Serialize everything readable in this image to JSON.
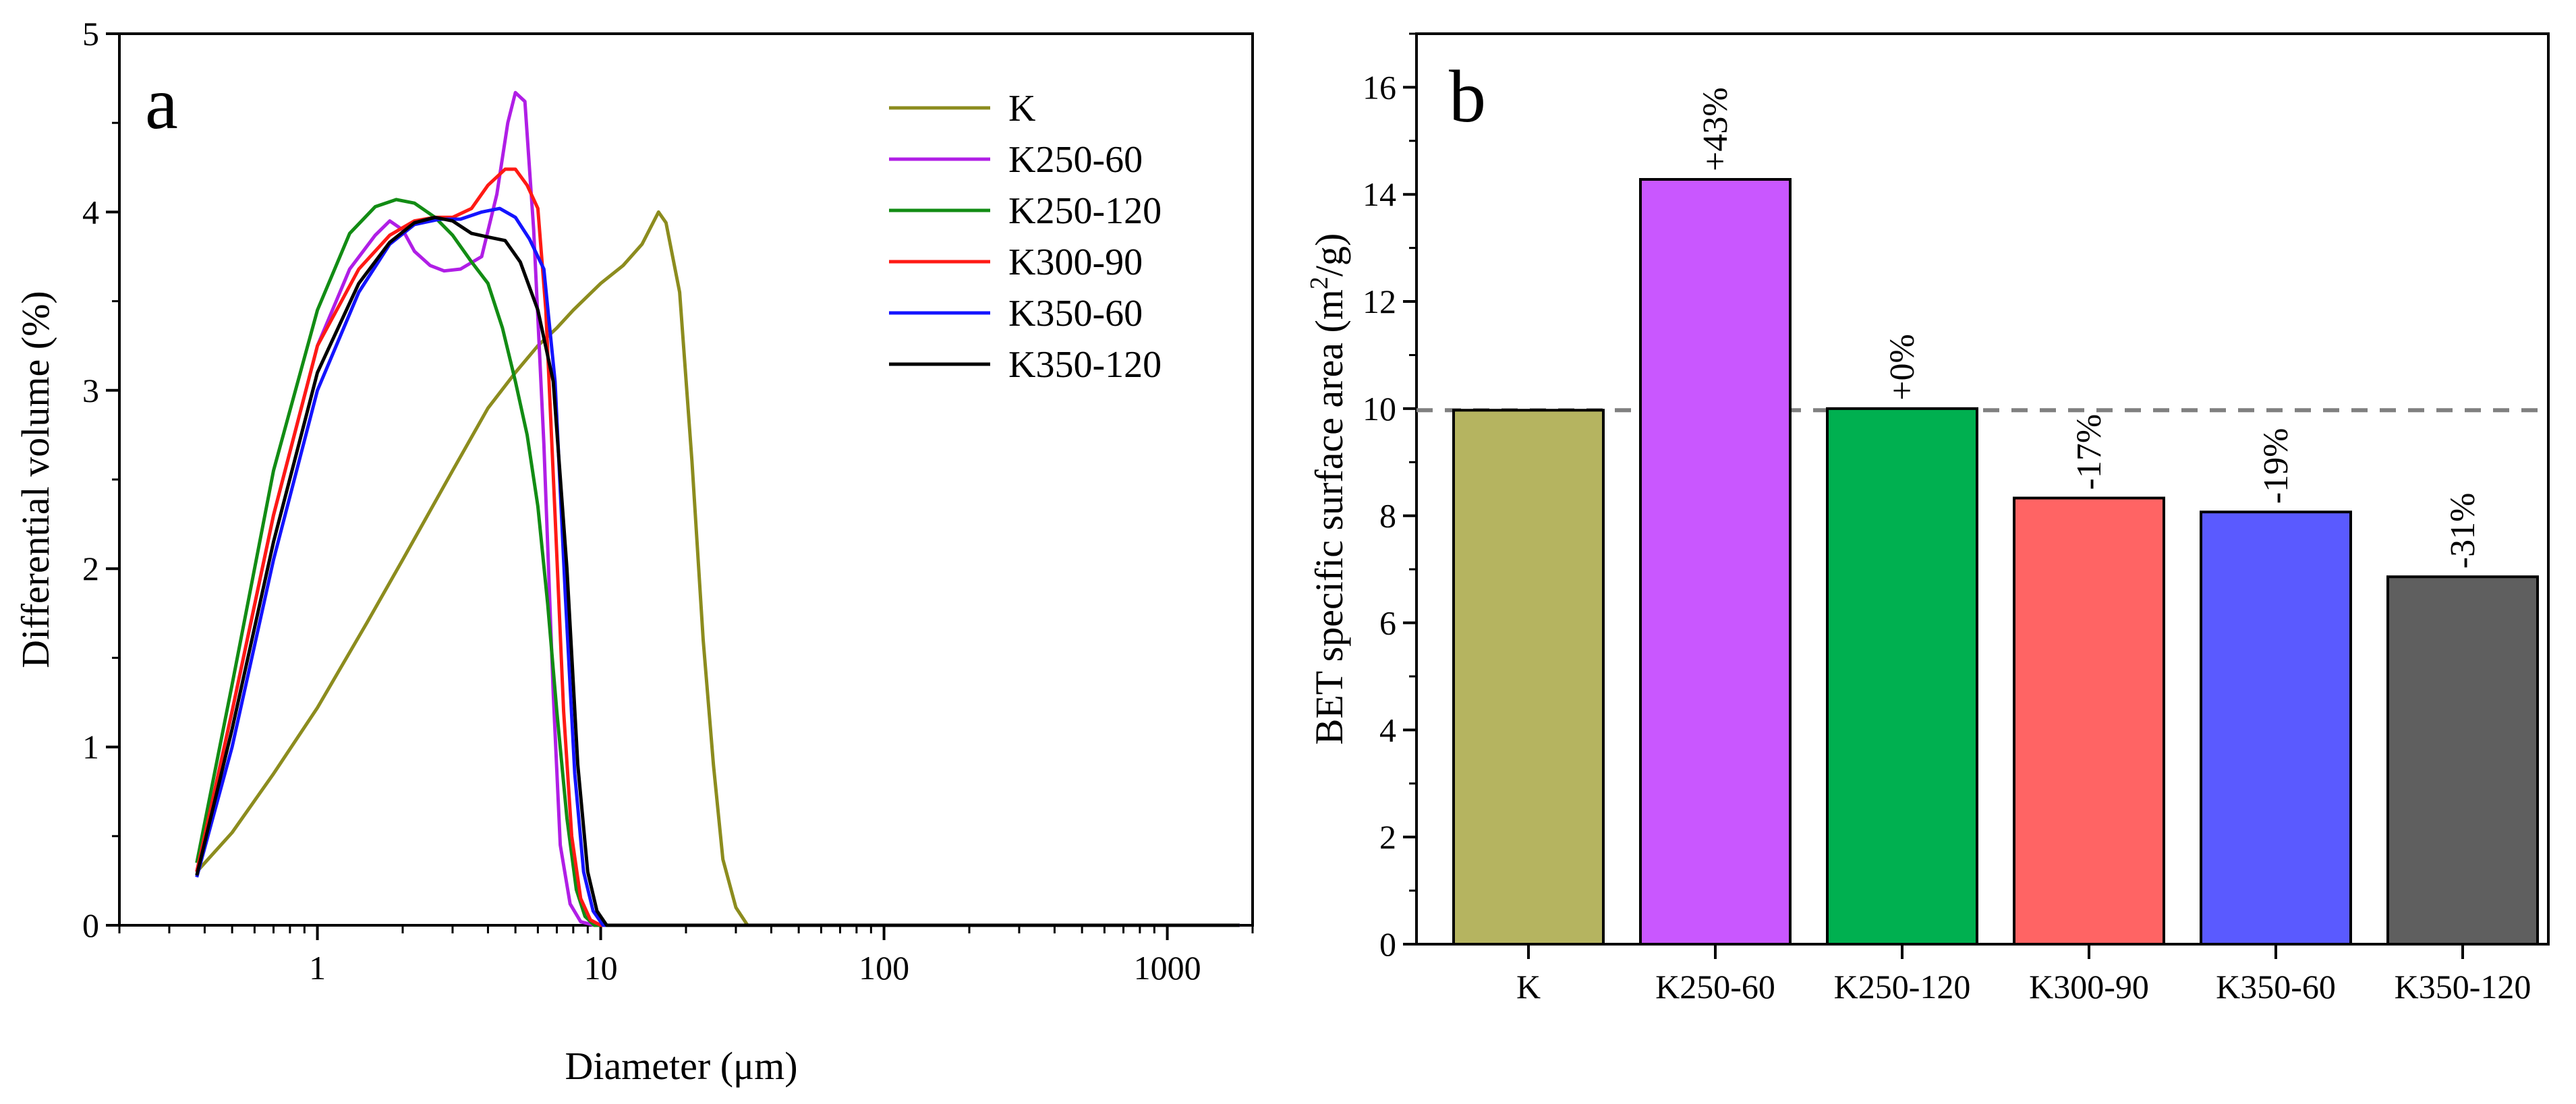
{
  "chart_data": [
    {
      "panel": "a",
      "type": "line",
      "x_scale": "log",
      "xlabel": "Diameter (μm)",
      "ylabel": "Differential volume (%)",
      "xlim": [
        0.2,
        2000
      ],
      "ylim": [
        0,
        5
      ],
      "x_ticks": [
        1,
        10,
        100,
        1000
      ],
      "x_tick_labels": [
        "1",
        "10",
        "100",
        "1000"
      ],
      "y_ticks": [
        0,
        1,
        2,
        3,
        4,
        5
      ],
      "y_tick_labels": [
        "0",
        "1",
        "2",
        "3",
        "4",
        "5"
      ],
      "legend_position": "top-right",
      "series": [
        {
          "name": "K",
          "color": "#8c8c1e",
          "points": [
            [
              0.375,
              0.3
            ],
            [
              0.5,
              0.52
            ],
            [
              0.7,
              0.85
            ],
            [
              1,
              1.22
            ],
            [
              1.5,
              1.7
            ],
            [
              2,
              2.05
            ],
            [
              3,
              2.55
            ],
            [
              4,
              2.9
            ],
            [
              5,
              3.1
            ],
            [
              6,
              3.25
            ],
            [
              7,
              3.35
            ],
            [
              8,
              3.45
            ],
            [
              10,
              3.6
            ],
            [
              12,
              3.7
            ],
            [
              14,
              3.82
            ],
            [
              16,
              4.0
            ],
            [
              17,
              3.94
            ],
            [
              19,
              3.55
            ],
            [
              21,
              2.6
            ],
            [
              23,
              1.6
            ],
            [
              25,
              0.9
            ],
            [
              27,
              0.37
            ],
            [
              30,
              0.1
            ],
            [
              33,
              0.0
            ],
            [
              40,
              0
            ],
            [
              100,
              0
            ],
            [
              1000,
              0
            ],
            [
              1800,
              0
            ]
          ]
        },
        {
          "name": "K250-60",
          "color": "#b01ee6",
          "points": [
            [
              0.375,
              0.3
            ],
            [
              0.5,
              1.2
            ],
            [
              0.7,
              2.3
            ],
            [
              1,
              3.25
            ],
            [
              1.3,
              3.68
            ],
            [
              1.6,
              3.87
            ],
            [
              1.8,
              3.95
            ],
            [
              2,
              3.9
            ],
            [
              2.2,
              3.78
            ],
            [
              2.5,
              3.7
            ],
            [
              2.8,
              3.67
            ],
            [
              3.2,
              3.68
            ],
            [
              3.8,
              3.75
            ],
            [
              4.3,
              4.1
            ],
            [
              4.7,
              4.5
            ],
            [
              5.0,
              4.67
            ],
            [
              5.4,
              4.62
            ],
            [
              5.8,
              3.9
            ],
            [
              6.3,
              2.7
            ],
            [
              6.8,
              1.3
            ],
            [
              7.2,
              0.45
            ],
            [
              7.8,
              0.12
            ],
            [
              8.5,
              0.02
            ],
            [
              9.5,
              0
            ],
            [
              100,
              0
            ],
            [
              1800,
              0
            ]
          ]
        },
        {
          "name": "K250-120",
          "color": "#128c14",
          "points": [
            [
              0.375,
              0.35
            ],
            [
              0.5,
              1.35
            ],
            [
              0.7,
              2.55
            ],
            [
              1,
              3.45
            ],
            [
              1.3,
              3.88
            ],
            [
              1.6,
              4.03
            ],
            [
              1.9,
              4.07
            ],
            [
              2.2,
              4.05
            ],
            [
              2.6,
              3.97
            ],
            [
              3,
              3.87
            ],
            [
              3.5,
              3.72
            ],
            [
              4,
              3.6
            ],
            [
              4.5,
              3.35
            ],
            [
              5,
              3.05
            ],
            [
              5.5,
              2.75
            ],
            [
              6,
              2.35
            ],
            [
              6.5,
              1.8
            ],
            [
              7,
              1.2
            ],
            [
              7.6,
              0.6
            ],
            [
              8.2,
              0.2
            ],
            [
              8.8,
              0.05
            ],
            [
              9.5,
              0.0
            ],
            [
              100,
              0
            ],
            [
              1800,
              0
            ]
          ]
        },
        {
          "name": "K300-90",
          "color": "#ff1a14",
          "points": [
            [
              0.375,
              0.3
            ],
            [
              0.5,
              1.2
            ],
            [
              0.7,
              2.3
            ],
            [
              1,
              3.25
            ],
            [
              1.4,
              3.68
            ],
            [
              1.8,
              3.87
            ],
            [
              2.2,
              3.95
            ],
            [
              2.6,
              3.97
            ],
            [
              3,
              3.97
            ],
            [
              3.5,
              4.02
            ],
            [
              4,
              4.15
            ],
            [
              4.6,
              4.24
            ],
            [
              5,
              4.24
            ],
            [
              5.5,
              4.15
            ],
            [
              6,
              4.02
            ],
            [
              6.4,
              3.45
            ],
            [
              6.9,
              2.3
            ],
            [
              7.4,
              1.2
            ],
            [
              7.9,
              0.5
            ],
            [
              8.5,
              0.15
            ],
            [
              9.2,
              0.03
            ],
            [
              10,
              0
            ],
            [
              100,
              0
            ],
            [
              1800,
              0
            ]
          ]
        },
        {
          "name": "K350-60",
          "color": "#1414ff",
          "points": [
            [
              0.375,
              0.27
            ],
            [
              0.5,
              1.0
            ],
            [
              0.7,
              2.05
            ],
            [
              1,
              3.0
            ],
            [
              1.4,
              3.55
            ],
            [
              1.8,
              3.82
            ],
            [
              2.2,
              3.93
            ],
            [
              2.7,
              3.96
            ],
            [
              3.2,
              3.96
            ],
            [
              3.8,
              4.0
            ],
            [
              4.4,
              4.02
            ],
            [
              5,
              3.97
            ],
            [
              5.6,
              3.85
            ],
            [
              6.3,
              3.68
            ],
            [
              6.9,
              3.05
            ],
            [
              7.5,
              1.85
            ],
            [
              8.1,
              0.85
            ],
            [
              8.7,
              0.3
            ],
            [
              9.4,
              0.08
            ],
            [
              10.2,
              0.0
            ],
            [
              100,
              0
            ],
            [
              1800,
              0
            ]
          ]
        },
        {
          "name": "K350-120",
          "color": "#000000",
          "points": [
            [
              0.375,
              0.28
            ],
            [
              0.5,
              1.1
            ],
            [
              0.7,
              2.15
            ],
            [
              1,
              3.1
            ],
            [
              1.4,
              3.6
            ],
            [
              1.8,
              3.83
            ],
            [
              2.2,
              3.94
            ],
            [
              2.6,
              3.97
            ],
            [
              3,
              3.95
            ],
            [
              3.5,
              3.88
            ],
            [
              4,
              3.86
            ],
            [
              4.6,
              3.84
            ],
            [
              5.2,
              3.72
            ],
            [
              6,
              3.45
            ],
            [
              6.8,
              3.05
            ],
            [
              7.6,
              2.0
            ],
            [
              8.3,
              0.9
            ],
            [
              9,
              0.3
            ],
            [
              9.7,
              0.08
            ],
            [
              10.5,
              0.0
            ],
            [
              100,
              0
            ],
            [
              1800,
              0
            ]
          ]
        }
      ]
    },
    {
      "panel": "b",
      "type": "bar",
      "xlabel": "",
      "ylabel_main": "BET specific surface area (m",
      "ylabel_sup": "2",
      "ylabel_tail": "/g)",
      "ylim": [
        0,
        17
      ],
      "y_ticks": [
        0,
        2,
        4,
        6,
        8,
        10,
        12,
        14,
        16
      ],
      "y_tick_labels": [
        "0",
        "2",
        "4",
        "6",
        "8",
        "10",
        "12",
        "14",
        "16"
      ],
      "reference_line": 9.97,
      "categories": [
        "K",
        "K250-60",
        "K250-120",
        "K300-90",
        "K350-60",
        "K350-120"
      ],
      "values": [
        9.97,
        14.28,
        10.0,
        8.33,
        8.07,
        6.86
      ],
      "bar_labels": [
        "",
        "+43%",
        "+0%",
        "-17%",
        "-19%",
        "-31%"
      ],
      "colors": [
        "#b5b460",
        "#c957ff",
        "#00b050",
        "#ff6464",
        "#5a5aff",
        "#5f5f5f"
      ]
    }
  ]
}
